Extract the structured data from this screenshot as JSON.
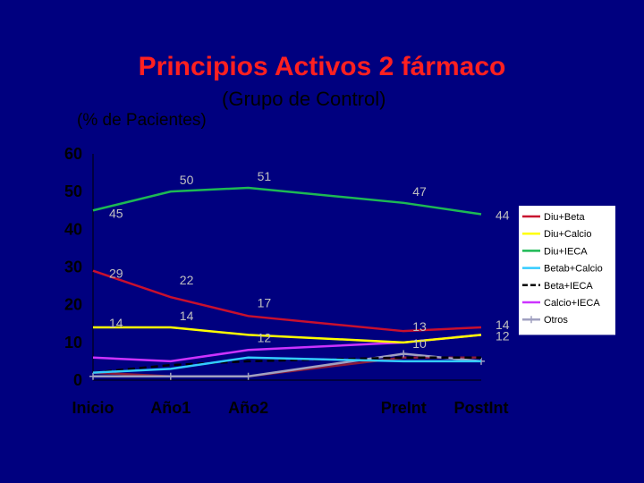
{
  "slide": {
    "title": "Principios Activos 2 fármaco",
    "subtitle": "(Grupo de Control)",
    "y_note": "(% de Pacientes)"
  },
  "colors": {
    "background": "#00007F",
    "title": "#FF2020",
    "legend_bg": "#FFFFFF",
    "data_label": "#C0C0C0"
  },
  "chart_data": {
    "type": "line",
    "categories": [
      "Inicio",
      "Año1",
      "Año2",
      "PreInt",
      "PostInt"
    ],
    "x": [
      0,
      1,
      2,
      4,
      5
    ],
    "ylim": [
      0,
      60
    ],
    "yticks": [
      0,
      10,
      20,
      30,
      40,
      50,
      60
    ],
    "grid": false,
    "legend_position": "right",
    "series": [
      {
        "name": "Diu+Beta",
        "color": "#C8102E",
        "marker": "none",
        "values": [
          29,
          22,
          17,
          13,
          14
        ],
        "labels": [
          "29",
          "22",
          "17",
          "13",
          "14"
        ]
      },
      {
        "name": "Diu+Calcio",
        "color": "#FFFF00",
        "marker": "none",
        "values": [
          14,
          14,
          12,
          10,
          12
        ],
        "labels": [
          "14",
          "14",
          "12",
          "10",
          "12"
        ]
      },
      {
        "name": "Diu+IECA",
        "color": "#1DB954",
        "marker": "none",
        "values": [
          45,
          50,
          51,
          47,
          44
        ],
        "labels": [
          "45",
          "50",
          "51",
          "47",
          "44"
        ]
      },
      {
        "name": "Betab+Calcio",
        "color": "#33CCFF",
        "marker": "none",
        "values": [
          2,
          3,
          6,
          5,
          5
        ],
        "labels": []
      },
      {
        "name": "Beta+IECA",
        "color": "#000000",
        "dash": true,
        "marker": "none",
        "values": [
          2,
          4,
          5,
          6,
          6
        ],
        "labels": []
      },
      {
        "name": "Calcio+IECA",
        "color": "#CC33FF",
        "marker": "none",
        "values": [
          6,
          5,
          8,
          10,
          12
        ],
        "labels": []
      },
      {
        "name": "Otros",
        "color": "#A0A0C0",
        "marker": "plus",
        "values": [
          1,
          1,
          1,
          7,
          5
        ],
        "labels": []
      }
    ],
    "extra_series": [
      {
        "color": "#8B1A3A",
        "values": [
          2,
          1,
          1,
          6,
          6
        ]
      }
    ]
  }
}
